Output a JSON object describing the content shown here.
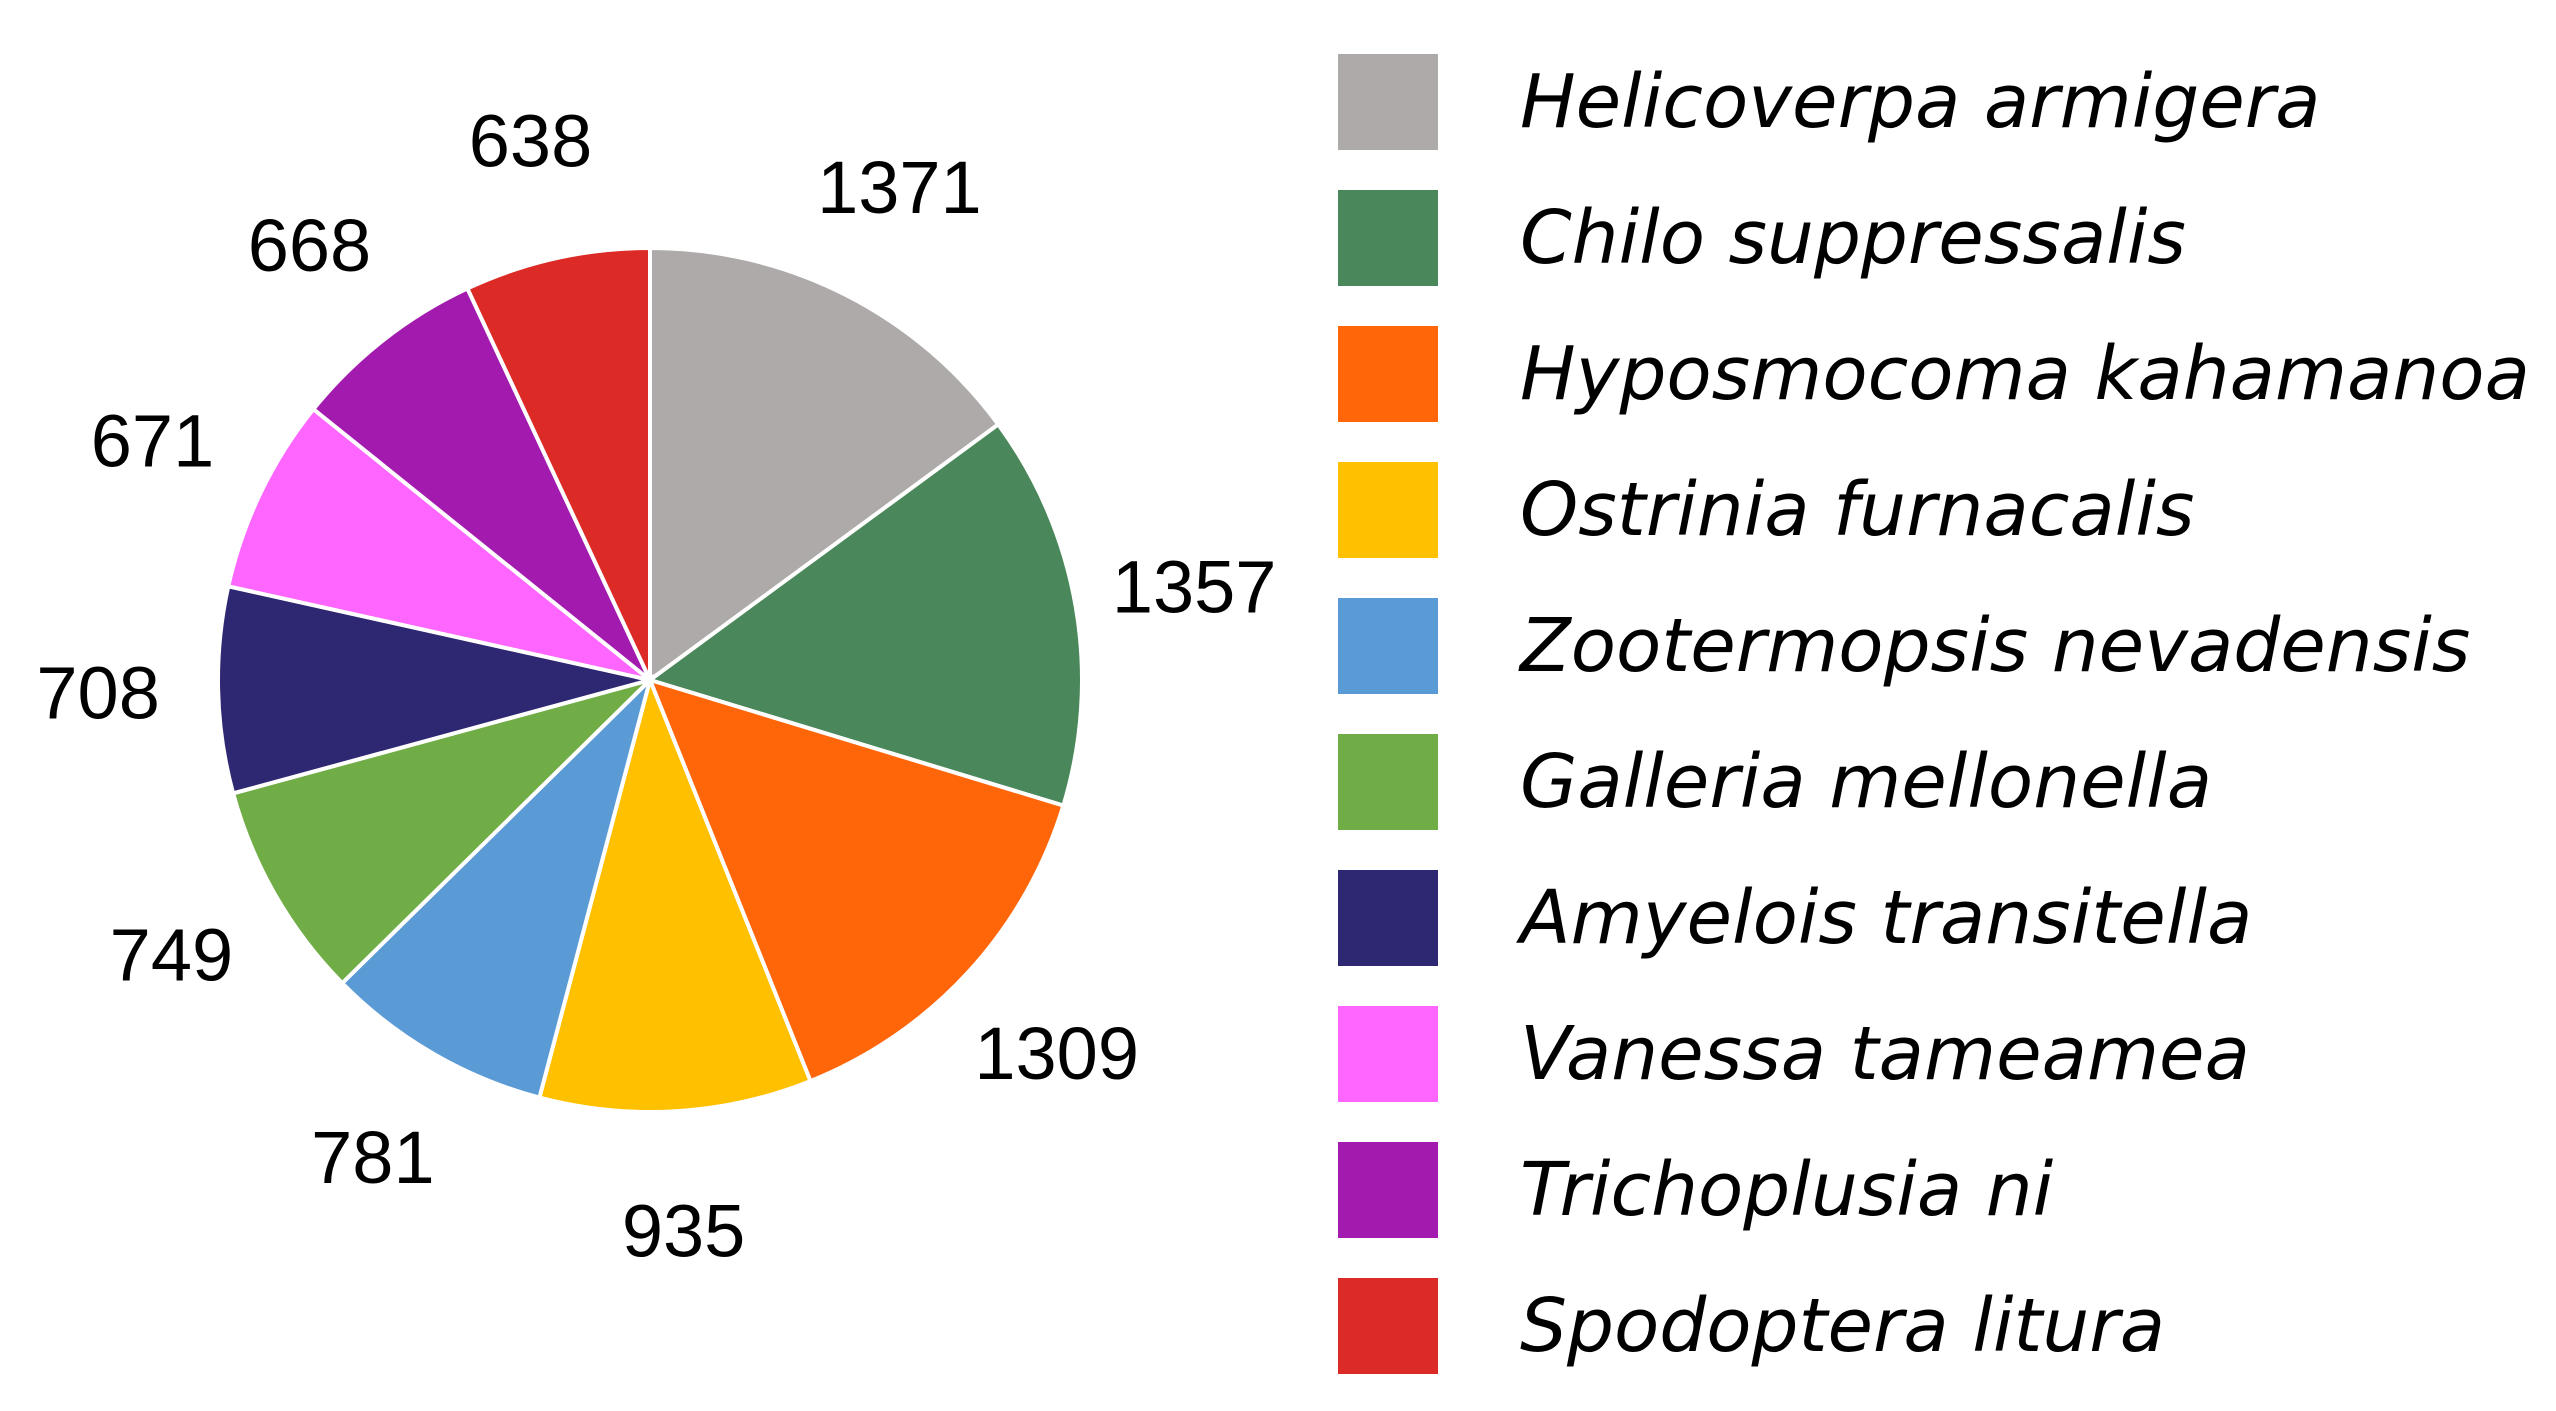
{
  "chart_data": {
    "type": "pie",
    "title": "",
    "legend_position": "right",
    "start_angle_deg": 0,
    "direction": "clockwise",
    "slices": [
      {
        "label": "Helicoverpa armigera",
        "value": 1371,
        "display": "1371",
        "color": "#ADAAA9"
      },
      {
        "label": "Chilo suppressalis",
        "value": 1357,
        "display": "1357",
        "color": "#4A875A"
      },
      {
        "label": "Hyposmocoma kahamanoa",
        "value": 1309,
        "display": "1309",
        "color": "#FF660A"
      },
      {
        "label": "Ostrinia furnacalis",
        "value": 935,
        "display": "935",
        "color": "#FFC000"
      },
      {
        "label": "Zootermopsis nevadensis",
        "value": 781,
        "display": "781",
        "color": "#5B9BD5"
      },
      {
        "label": "Galleria mellonella",
        "value": 749,
        "display": "749",
        "color": "#70AD47"
      },
      {
        "label": "Amyelois transitella",
        "value": 708,
        "display": "708",
        "color": "#2E2873"
      },
      {
        "label": "Vanessa tameamea",
        "value": 671,
        "display": "671",
        "color": "#FF66FF"
      },
      {
        "label": "Trichoplusia ni",
        "value": 668,
        "display": "668",
        "color": "#A21AAE"
      },
      {
        "label": "Spodoptera litura",
        "value": 638,
        "display": "638",
        "color": "#DC2A26"
      }
    ]
  }
}
